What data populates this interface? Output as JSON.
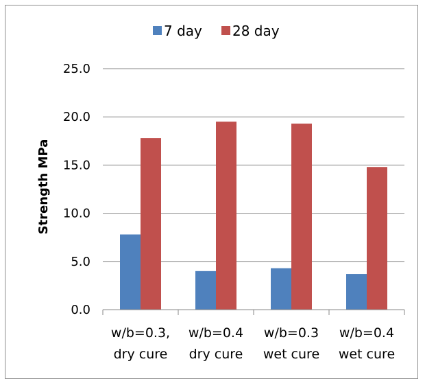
{
  "chart_data": {
    "type": "bar",
    "categories": [
      [
        "w/b=0.3,",
        "dry cure"
      ],
      [
        "w/b=0.4",
        "dry cure"
      ],
      [
        "w/b=0.3",
        "wet cure"
      ],
      [
        "w/b=0.4",
        "wet cure"
      ]
    ],
    "series": [
      {
        "name": "7 day",
        "color": "#4f81bd",
        "values": [
          7.8,
          4.0,
          4.3,
          3.7
        ]
      },
      {
        "name": "28 day",
        "color": "#c0504d",
        "values": [
          17.8,
          19.5,
          19.3,
          14.8
        ]
      }
    ],
    "title": "",
    "xlabel": "",
    "ylabel": "Strength MPa",
    "ylim": [
      0,
      25
    ],
    "yticks": [
      "0.0",
      "5.0",
      "10.0",
      "15.0",
      "20.0",
      "25.0"
    ],
    "grid": true,
    "legend_position": "top"
  }
}
